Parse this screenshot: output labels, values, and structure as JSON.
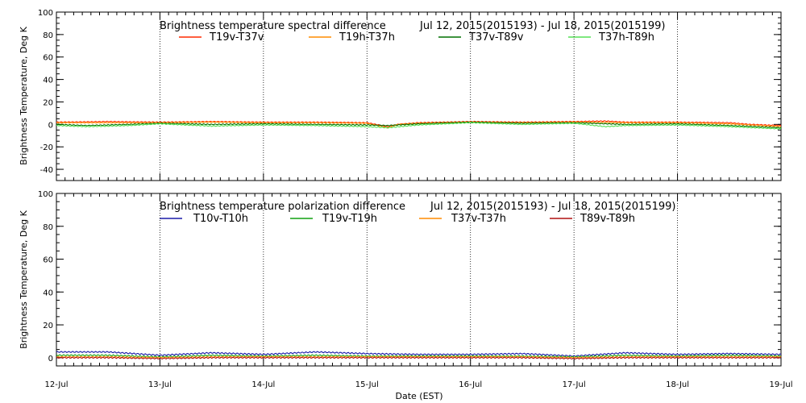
{
  "chart_data": [
    {
      "type": "line",
      "title": "Brightness temperature spectral difference",
      "date_range": "Jul 12, 2015(2015193) - Jul 18, 2015(2015199)",
      "ylabel": "Brightness Temperature, Deg K",
      "xlabel": "",
      "ylim": [
        -50,
        100
      ],
      "yticks": [
        "-40",
        "-20",
        "0",
        "20",
        "40",
        "60",
        "80",
        "100"
      ],
      "xlim": [
        12,
        19
      ],
      "grid": "vertical dotted lines at each day",
      "legend_position": "top",
      "series": [
        {
          "name": "T19v-T37v",
          "color": "#ff2a00",
          "points": [
            [
              12.0,
              2
            ],
            [
              12.5,
              2.5
            ],
            [
              13.0,
              2
            ],
            [
              13.5,
              2.5
            ],
            [
              14.0,
              2
            ],
            [
              14.5,
              2
            ],
            [
              15.0,
              1.5
            ],
            [
              15.2,
              -2
            ],
            [
              15.3,
              0
            ],
            [
              15.5,
              1.5
            ],
            [
              16.0,
              2.5
            ],
            [
              16.5,
              2
            ],
            [
              17.0,
              2.5
            ],
            [
              17.3,
              3
            ],
            [
              17.5,
              2
            ],
            [
              18.0,
              2
            ],
            [
              18.5,
              1.5
            ],
            [
              18.7,
              0
            ],
            [
              19.0,
              -1
            ]
          ]
        },
        {
          "name": "T19h-T37h",
          "color": "#ff8c00",
          "points": [
            [
              12.0,
              1.5
            ],
            [
              12.5,
              1.5
            ],
            [
              13.0,
              1.5
            ],
            [
              13.5,
              2
            ],
            [
              14.0,
              1.5
            ],
            [
              14.5,
              1.5
            ],
            [
              15.0,
              1
            ],
            [
              15.2,
              -3
            ],
            [
              15.3,
              0
            ],
            [
              15.5,
              1
            ],
            [
              16.0,
              2
            ],
            [
              16.5,
              1.5
            ],
            [
              17.0,
              2
            ],
            [
              17.5,
              1.5
            ],
            [
              18.0,
              1.5
            ],
            [
              18.5,
              0.5
            ],
            [
              19.0,
              -2
            ]
          ]
        },
        {
          "name": "T37v-T89v",
          "color": "#007000",
          "points": [
            [
              12.0,
              0
            ],
            [
              12.3,
              -1
            ],
            [
              12.7,
              0
            ],
            [
              13.0,
              1
            ],
            [
              13.5,
              0
            ],
            [
              14.0,
              0.5
            ],
            [
              14.5,
              0
            ],
            [
              15.0,
              -0.5
            ],
            [
              15.2,
              -1
            ],
            [
              15.5,
              0.5
            ],
            [
              16.0,
              2
            ],
            [
              16.5,
              1
            ],
            [
              17.0,
              1.5
            ],
            [
              17.5,
              0
            ],
            [
              18.0,
              0.5
            ],
            [
              18.5,
              -1
            ],
            [
              19.0,
              -3
            ]
          ]
        },
        {
          "name": "T37h-T89h",
          "color": "#55e055",
          "points": [
            [
              12.0,
              -1
            ],
            [
              12.3,
              -2
            ],
            [
              12.7,
              -1
            ],
            [
              13.0,
              0.5
            ],
            [
              13.5,
              -1.5
            ],
            [
              14.0,
              -0.5
            ],
            [
              14.5,
              -1
            ],
            [
              15.0,
              -2
            ],
            [
              15.2,
              -3
            ],
            [
              15.5,
              -0.5
            ],
            [
              16.0,
              1.5
            ],
            [
              16.5,
              0
            ],
            [
              17.0,
              1
            ],
            [
              17.3,
              -2
            ],
            [
              17.5,
              -1
            ],
            [
              18.0,
              -0.5
            ],
            [
              18.5,
              -2
            ],
            [
              19.0,
              -4
            ]
          ]
        }
      ]
    },
    {
      "type": "line",
      "title": "Brightness temperature polarization difference",
      "date_range": "Jul 12, 2015(2015193) - Jul 18, 2015(2015199)",
      "ylabel": "Brightness Temperature, Deg K",
      "xlabel": "Date (EST)",
      "ylim": [
        -5,
        100
      ],
      "yticks": [
        "0",
        "20",
        "40",
        "60",
        "80",
        "100"
      ],
      "xlim": [
        12,
        19
      ],
      "xticks": [
        "12-Jul",
        "13-Jul",
        "14-Jul",
        "15-Jul",
        "16-Jul",
        "17-Jul",
        "18-Jul",
        "19-Jul"
      ],
      "grid": "vertical dotted lines at each day",
      "legend_position": "top",
      "series": [
        {
          "name": "T10v-T10h",
          "color": "#1a1aa8",
          "points": [
            [
              12.0,
              3.5
            ],
            [
              12.5,
              3.5
            ],
            [
              13.0,
              1.5
            ],
            [
              13.5,
              3
            ],
            [
              14.0,
              2
            ],
            [
              14.5,
              3.5
            ],
            [
              15.0,
              2.5
            ],
            [
              15.5,
              2
            ],
            [
              16.0,
              2
            ],
            [
              16.5,
              2.5
            ],
            [
              17.0,
              1
            ],
            [
              17.5,
              3
            ],
            [
              18.0,
              2
            ],
            [
              18.5,
              2.5
            ],
            [
              19.0,
              2
            ]
          ]
        },
        {
          "name": "T19v-T19h",
          "color": "#10a010",
          "points": [
            [
              12.0,
              1.5
            ],
            [
              12.5,
              1.5
            ],
            [
              13.0,
              0.5
            ],
            [
              13.5,
              1.5
            ],
            [
              14.0,
              1
            ],
            [
              14.5,
              1.5
            ],
            [
              15.0,
              1
            ],
            [
              15.5,
              1
            ],
            [
              16.0,
              1
            ],
            [
              16.5,
              1
            ],
            [
              17.0,
              0.5
            ],
            [
              17.5,
              1.5
            ],
            [
              18.0,
              1
            ],
            [
              18.5,
              1.5
            ],
            [
              19.0,
              1
            ]
          ]
        },
        {
          "name": "T37v-T37h",
          "color": "#ff8c00",
          "points": [
            [
              12.0,
              0.5
            ],
            [
              12.5,
              0.5
            ],
            [
              13.0,
              0
            ],
            [
              13.5,
              0.5
            ],
            [
              14.0,
              0.5
            ],
            [
              14.5,
              0.5
            ],
            [
              15.0,
              0.5
            ],
            [
              15.5,
              0.5
            ],
            [
              16.0,
              0.5
            ],
            [
              16.5,
              0.5
            ],
            [
              17.0,
              0
            ],
            [
              17.5,
              0.5
            ],
            [
              18.0,
              0.5
            ],
            [
              18.5,
              0.5
            ],
            [
              19.0,
              0.5
            ]
          ]
        },
        {
          "name": "T89v-T89h",
          "color": "#b01010",
          "points": [
            [
              12.0,
              0
            ],
            [
              12.5,
              0
            ],
            [
              13.0,
              -0.5
            ],
            [
              13.5,
              0
            ],
            [
              14.0,
              0
            ],
            [
              14.5,
              0
            ],
            [
              15.0,
              0
            ],
            [
              15.5,
              0
            ],
            [
              16.0,
              0
            ],
            [
              16.5,
              0
            ],
            [
              17.0,
              -0.5
            ],
            [
              17.5,
              0
            ],
            [
              18.0,
              0
            ],
            [
              18.5,
              0
            ],
            [
              19.0,
              0
            ]
          ]
        }
      ]
    }
  ]
}
